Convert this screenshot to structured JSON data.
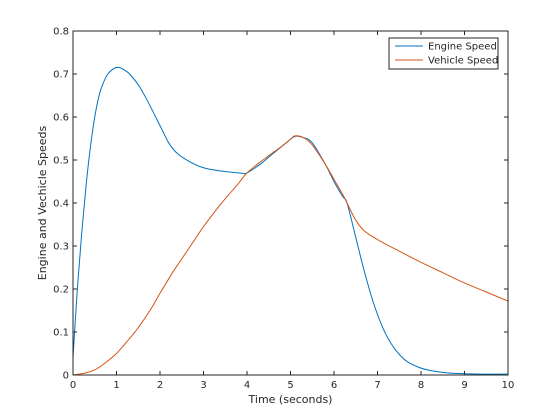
{
  "chart_data": {
    "type": "line",
    "xlabel": "Time (seconds)",
    "ylabel": "Engine and Vechicle Speeds",
    "xlim": [
      0,
      10
    ],
    "ylim": [
      0,
      0.8
    ],
    "xticks": [
      "0",
      "1",
      "2",
      "3",
      "4",
      "5",
      "6",
      "7",
      "8",
      "9",
      "10"
    ],
    "yticks": [
      "0",
      "0.1",
      "0.2",
      "0.3",
      "0.4",
      "0.5",
      "0.6",
      "0.7",
      "0.8"
    ],
    "grid": false,
    "legend_position": "top-right",
    "series": [
      {
        "name": "Engine Speed",
        "color": "#0072bd",
        "x": [
          0,
          0.1,
          0.2,
          0.3,
          0.4,
          0.5,
          0.6,
          0.7,
          0.8,
          0.9,
          1.0,
          1.1,
          1.2,
          1.3,
          1.5,
          1.7,
          2.0,
          2.2,
          2.4,
          2.7,
          3.0,
          3.3,
          3.6,
          3.9,
          4.0,
          4.3,
          4.6,
          4.9,
          5.1,
          5.3,
          5.5,
          5.8,
          6.0,
          6.2,
          6.3,
          6.5,
          6.7,
          6.9,
          7.1,
          7.3,
          7.5,
          7.7,
          8.0,
          8.3,
          8.6,
          9.0,
          9.5,
          10.0
        ],
        "y": [
          0.04,
          0.2,
          0.33,
          0.44,
          0.53,
          0.6,
          0.65,
          0.68,
          0.7,
          0.71,
          0.715,
          0.714,
          0.708,
          0.7,
          0.675,
          0.64,
          0.58,
          0.54,
          0.515,
          0.495,
          0.482,
          0.476,
          0.472,
          0.469,
          0.47,
          0.49,
          0.515,
          0.54,
          0.555,
          0.552,
          0.54,
          0.49,
          0.45,
          0.415,
          0.4,
          0.32,
          0.24,
          0.17,
          0.115,
          0.075,
          0.048,
          0.03,
          0.016,
          0.009,
          0.005,
          0.003,
          0.002,
          0.002
        ]
      },
      {
        "name": "Vehicle Speed",
        "color": "#d95319",
        "x": [
          0,
          0.3,
          0.5,
          0.7,
          1.0,
          1.3,
          1.5,
          1.8,
          2.0,
          2.3,
          2.5,
          2.8,
          3.0,
          3.3,
          3.5,
          3.8,
          4.0,
          4.3,
          4.5,
          4.8,
          5.0,
          5.1,
          5.3,
          5.5,
          5.8,
          6.0,
          6.2,
          6.3,
          6.5,
          6.7,
          7.0,
          7.5,
          8.0,
          8.5,
          9.0,
          9.5,
          10.0
        ],
        "y": [
          0,
          0.005,
          0.012,
          0.025,
          0.05,
          0.085,
          0.11,
          0.155,
          0.19,
          0.24,
          0.27,
          0.315,
          0.345,
          0.385,
          0.41,
          0.445,
          0.47,
          0.495,
          0.51,
          0.532,
          0.548,
          0.556,
          0.552,
          0.535,
          0.49,
          0.455,
          0.42,
          0.4,
          0.36,
          0.335,
          0.315,
          0.288,
          0.262,
          0.238,
          0.214,
          0.193,
          0.172
        ]
      }
    ]
  }
}
